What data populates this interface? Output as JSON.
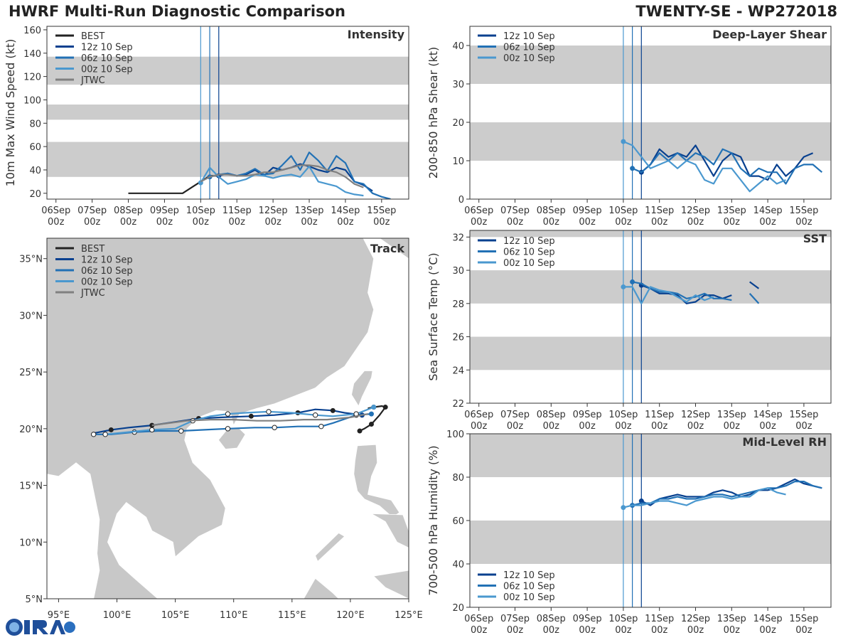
{
  "header": {
    "title_left": "HWRF Multi-Run Diagnostic Comparison",
    "title_right": "TWENTY-SE - WP272018"
  },
  "colors": {
    "best": "#222222",
    "run12": "#08408f",
    "run06": "#2271b5",
    "run00": "#4a98cf",
    "jtwc": "#808080",
    "band": "#cccccc",
    "land": "#c8c8c8"
  },
  "time_ticks": [
    "06Sep\n00z",
    "07Sep\n00z",
    "08Sep\n00z",
    "09Sep\n00z",
    "10Sep\n00z",
    "11Sep\n00z",
    "12Sep\n00z",
    "13Sep\n00z",
    "14Sep\n00z",
    "15Sep\n00z"
  ],
  "legend_runs": [
    "12z 10 Sep",
    "06z 10 Sep",
    "00z 10 Sep"
  ],
  "chart_data": [
    {
      "type": "line",
      "title": "Intensity",
      "ylabel": "10m Max Wind Speed (kt)",
      "ylim": [
        15,
        163
      ],
      "xlim_days": [
        -0.25,
        9.75
      ],
      "yticks": [
        20,
        40,
        60,
        80,
        100,
        120,
        140,
        160
      ],
      "bands": [
        [
          34,
          64
        ],
        [
          83,
          96
        ],
        [
          113,
          137
        ]
      ],
      "init_lines": [
        4.0,
        4.25,
        4.5
      ],
      "legend": [
        "BEST",
        "12z 10 Sep",
        "06z 10 Sep",
        "00z 10 Sep",
        "JTWC"
      ],
      "series": [
        {
          "name": "BEST",
          "x": [
            2,
            2.25,
            2.5,
            2.75,
            3,
            3.25,
            3.5,
            3.75,
            4,
            4.25,
            4.5
          ],
          "y": [
            20,
            20,
            20,
            20,
            20,
            20,
            20,
            25,
            30,
            35,
            35
          ]
        },
        {
          "name": "12z 10 Sep",
          "x": [
            4.5,
            4.75,
            5,
            5.25,
            5.5,
            5.75,
            6,
            6.25,
            6.5,
            6.75,
            7,
            7.25,
            7.5,
            7.75,
            8,
            8.25,
            8.5,
            8.75
          ],
          "y": [
            35,
            37,
            35,
            36,
            40,
            35,
            42,
            40,
            42,
            45,
            43,
            40,
            38,
            42,
            40,
            30,
            27,
            22
          ]
        },
        {
          "name": "06z 10 Sep",
          "x": [
            4.25,
            4.5,
            4.75,
            5,
            5.25,
            5.5,
            5.75,
            6,
            6.25,
            6.5,
            6.75,
            7,
            7.25,
            7.5,
            7.75,
            8,
            8.25,
            8.5,
            8.75,
            9,
            9.25
          ],
          "y": [
            34,
            36,
            37,
            35,
            37,
            41,
            36,
            37,
            44,
            52,
            40,
            55,
            48,
            39,
            52,
            46,
            30,
            28,
            20,
            17,
            15
          ]
        },
        {
          "name": "00z 10 Sep",
          "x": [
            4,
            4.25,
            4.5,
            4.75,
            5,
            5.25,
            5.5,
            5.75,
            6,
            6.25,
            6.5,
            6.75,
            7,
            7.25,
            7.5,
            7.75,
            8,
            8.25,
            8.5
          ],
          "y": [
            29,
            42,
            34,
            28,
            30,
            32,
            36,
            35,
            33,
            35,
            36,
            34,
            43,
            30,
            28,
            26,
            21,
            19,
            18
          ]
        },
        {
          "name": "JTWC",
          "x": [
            4,
            4.25,
            4.5,
            4.75,
            5,
            5.25,
            5.5,
            5.75,
            6,
            6.25,
            6.5,
            6.75,
            7,
            7.25,
            7.5,
            7.75,
            8,
            8.25,
            8.5
          ],
          "y": [
            30,
            34,
            36,
            36,
            35,
            35,
            36,
            38,
            38,
            40,
            42,
            44,
            44,
            43,
            40,
            38,
            34,
            28,
            25
          ]
        }
      ]
    },
    {
      "type": "line",
      "title": "Deep-Layer Shear",
      "ylabel": "200-850 hPa Shear (kt)",
      "ylim": [
        0,
        45
      ],
      "xlim_days": [
        -0.25,
        9.75
      ],
      "yticks": [
        0,
        10,
        20,
        30,
        40
      ],
      "bands": [
        [
          10,
          20
        ],
        [
          30,
          40
        ]
      ],
      "init_lines": [
        4.0,
        4.25,
        4.5
      ],
      "legend": [
        "12z 10 Sep",
        "06z 10 Sep",
        "00z 10 Sep"
      ],
      "series": [
        {
          "name": "12z 10 Sep",
          "x": [
            4.5,
            4.75,
            5,
            5.25,
            5.5,
            5.75,
            6,
            6.25,
            6.5,
            6.75,
            7,
            7.25,
            7.5,
            7.75,
            8,
            8.25,
            8.5,
            8.75,
            9,
            9.25
          ],
          "y": [
            7,
            9,
            13,
            11,
            12,
            11,
            14,
            10,
            6,
            10,
            12,
            11,
            6,
            6,
            5,
            9,
            6,
            8,
            11,
            12
          ]
        },
        {
          "name": "06z 10 Sep",
          "x": [
            4.25,
            4.5,
            4.75,
            5,
            5.25,
            5.5,
            5.75,
            6,
            6.25,
            6.5,
            6.75,
            7,
            7.25,
            7.5,
            7.75,
            8,
            8.25,
            8.5,
            8.75,
            9,
            9.25,
            9.5
          ],
          "y": [
            8,
            7,
            9,
            12,
            10,
            12,
            10,
            12,
            11,
            9,
            13,
            12,
            8,
            6,
            8,
            7,
            7,
            4,
            8,
            9,
            9,
            7
          ]
        },
        {
          "name": "00z 10 Sep",
          "x": [
            4,
            4.25,
            4.5,
            4.75,
            5,
            5.25,
            5.5,
            5.75,
            6,
            6.25,
            6.5,
            6.75,
            7,
            7.25,
            7.5,
            7.75,
            8,
            8.25,
            8.5
          ],
          "y": [
            15,
            14,
            11,
            8,
            9,
            10,
            8,
            10,
            9,
            5,
            4,
            8,
            8,
            5,
            2,
            4,
            6,
            4,
            5
          ]
        }
      ]
    },
    {
      "type": "line",
      "title": "SST",
      "ylabel": "Sea Surface Temp (°C)",
      "ylim": [
        22,
        32.4
      ],
      "xlim_days": [
        -0.25,
        9.75
      ],
      "yticks": [
        22,
        24,
        26,
        28,
        30,
        32
      ],
      "bands": [
        [
          24,
          26
        ],
        [
          28,
          30
        ],
        [
          32,
          32.4
        ]
      ],
      "init_lines": [
        4.0,
        4.25,
        4.5
      ],
      "legend": [
        "12z 10 Sep",
        "06z 10 Sep",
        "00z 10 Sep"
      ],
      "series": [
        {
          "name": "12z 10 Sep",
          "x": [
            4.5,
            4.75,
            5,
            5.25,
            5.5,
            5.75,
            6,
            6.25,
            6.5,
            6.75,
            7
          ],
          "y": [
            29.1,
            28.9,
            28.6,
            28.6,
            28.5,
            28,
            28.1,
            28.5,
            28.5,
            28.3,
            28.5
          ]
        },
        {
          "name": "12z 10 Sep b",
          "x": [
            7.5,
            7.75
          ],
          "y": [
            29.3,
            28.9
          ]
        },
        {
          "name": "06z 10 Sep",
          "x": [
            4.25,
            4.5,
            4.75,
            5,
            5.25,
            5.5,
            5.75,
            6,
            6.25,
            6.5,
            6.75,
            7
          ],
          "y": [
            29.3,
            29.2,
            28.9,
            28.7,
            28.7,
            28.6,
            28.3,
            28.4,
            28.6,
            28.3,
            28.3,
            28.2
          ]
        },
        {
          "name": "06z 10 Sep b",
          "x": [
            7.5,
            7.75
          ],
          "y": [
            28.6,
            28
          ]
        },
        {
          "name": "00z 10 Sep",
          "x": [
            4,
            4.25,
            4.5,
            4.75,
            5,
            5.25,
            5.5,
            5.75,
            6,
            6.25,
            6.5
          ],
          "y": [
            29,
            29,
            28,
            29,
            28.8,
            28.7,
            28.4,
            28.1,
            28.5,
            28.2,
            28.4
          ]
        }
      ]
    },
    {
      "type": "line",
      "title": "Mid-Level RH",
      "ylabel": "700-500 hPa Humidity (%)",
      "ylim": [
        20,
        100
      ],
      "xlim_days": [
        -0.25,
        9.75
      ],
      "yticks": [
        20,
        40,
        60,
        80,
        100
      ],
      "bands": [
        [
          40,
          60
        ],
        [
          80,
          100
        ]
      ],
      "init_lines": [
        4.0,
        4.25,
        4.5
      ],
      "legend": [
        "12z 10 Sep",
        "06z 10 Sep",
        "00z 10 Sep"
      ],
      "series": [
        {
          "name": "12z 10 Sep",
          "x": [
            4.5,
            4.75,
            5,
            5.25,
            5.5,
            5.75,
            6,
            6.25,
            6.5,
            6.75,
            7,
            7.25,
            7.5,
            7.75,
            8,
            8.25,
            8.5,
            8.75,
            9,
            9.25,
            9.5
          ],
          "y": [
            69,
            67,
            70,
            71,
            72,
            71,
            71,
            71,
            73,
            74,
            73,
            71,
            72,
            74,
            74,
            75,
            77,
            79,
            77,
            76,
            75
          ]
        },
        {
          "name": "06z 10 Sep",
          "x": [
            4.25,
            4.5,
            4.75,
            5,
            5.25,
            5.5,
            5.75,
            6,
            6.25,
            6.5,
            6.75,
            7,
            7.25,
            7.5,
            7.75,
            8,
            8.25,
            8.5,
            8.75,
            9,
            9.25,
            9.5
          ],
          "y": [
            67,
            68,
            68,
            70,
            70,
            71,
            70,
            70,
            71,
            72,
            72,
            71,
            72,
            73,
            74,
            75,
            75,
            76,
            78,
            78,
            76,
            75
          ]
        },
        {
          "name": "00z 10 Sep",
          "x": [
            4,
            4.25,
            4.5,
            4.75,
            5,
            5.25,
            5.5,
            5.75,
            6,
            6.25,
            6.5,
            6.75,
            7,
            7.25,
            7.5,
            7.75,
            8,
            8.25,
            8.5
          ],
          "y": [
            66,
            67,
            67,
            68,
            69,
            69,
            68,
            67,
            69,
            70,
            71,
            71,
            70,
            71,
            71,
            74,
            75,
            73,
            72
          ]
        }
      ]
    },
    {
      "type": "scatter",
      "title": "Track",
      "xlabel_ticks": [
        "95°E",
        "100°E",
        "105°E",
        "110°E",
        "115°E",
        "120°E",
        "125°E"
      ],
      "ylabel_ticks": [
        "5°N",
        "10°N",
        "15°N",
        "20°N",
        "25°N",
        "30°N",
        "35°N"
      ],
      "xlim": [
        94,
        125
      ],
      "ylim": [
        5,
        36.8
      ],
      "legend": [
        "BEST",
        "12z 10 Sep",
        "06z 10 Sep",
        "00z 10 Sep",
        "JTWC"
      ],
      "series": [
        {
          "name": "BEST",
          "lon": [
            120.8,
            121.2,
            121.8,
            122.5,
            123.0,
            122.7,
            122.0,
            121.5
          ],
          "lat": [
            19.8,
            20.0,
            20.4,
            21.2,
            21.9,
            22.0,
            21.9,
            21.8
          ]
        },
        {
          "name": "12z 10 Sep",
          "lon": [
            121.0,
            119.5,
            118.5,
            117.0,
            115.5,
            113.5,
            111.5,
            109.0,
            107.0,
            105.0,
            103.0,
            101.0,
            99.5,
            98.0
          ],
          "lat": [
            21.2,
            21.4,
            21.6,
            21.7,
            21.4,
            21.2,
            21.1,
            21.0,
            20.9,
            20.6,
            20.3,
            20.1,
            19.9,
            19.6
          ]
        },
        {
          "name": "06z 10 Sep",
          "lon": [
            121.8,
            120.5,
            118.5,
            117.5,
            115.5,
            113.5,
            111.8,
            109.5,
            107.5,
            105.5,
            103.5,
            101.5,
            99.5,
            98.0
          ],
          "lat": [
            21.3,
            21.2,
            20.5,
            20.2,
            20.2,
            20.1,
            20.1,
            20.0,
            19.9,
            19.8,
            19.8,
            19.7,
            19.5,
            19.5
          ]
        },
        {
          "name": "00z 10 Sep",
          "lon": [
            122.0,
            120.5,
            118.5,
            117.0,
            115.0,
            113.0,
            111.0,
            109.5,
            108.0,
            106.5,
            105.0,
            103.0,
            101.0,
            99.0
          ],
          "lat": [
            21.9,
            21.3,
            21.1,
            21.2,
            21.4,
            21.5,
            21.4,
            21.3,
            21.1,
            20.7,
            20.0,
            19.9,
            19.7,
            19.5
          ]
        },
        {
          "name": "JTWC",
          "lon": [
            121.5,
            120.0,
            118.0,
            116.0,
            114.0,
            112.0,
            110.0,
            108.0,
            106.0,
            104.5,
            103.0
          ],
          "lat": [
            21.3,
            21.0,
            20.8,
            20.8,
            20.7,
            20.7,
            20.8,
            20.8,
            20.7,
            20.5,
            20.3
          ]
        }
      ]
    }
  ]
}
